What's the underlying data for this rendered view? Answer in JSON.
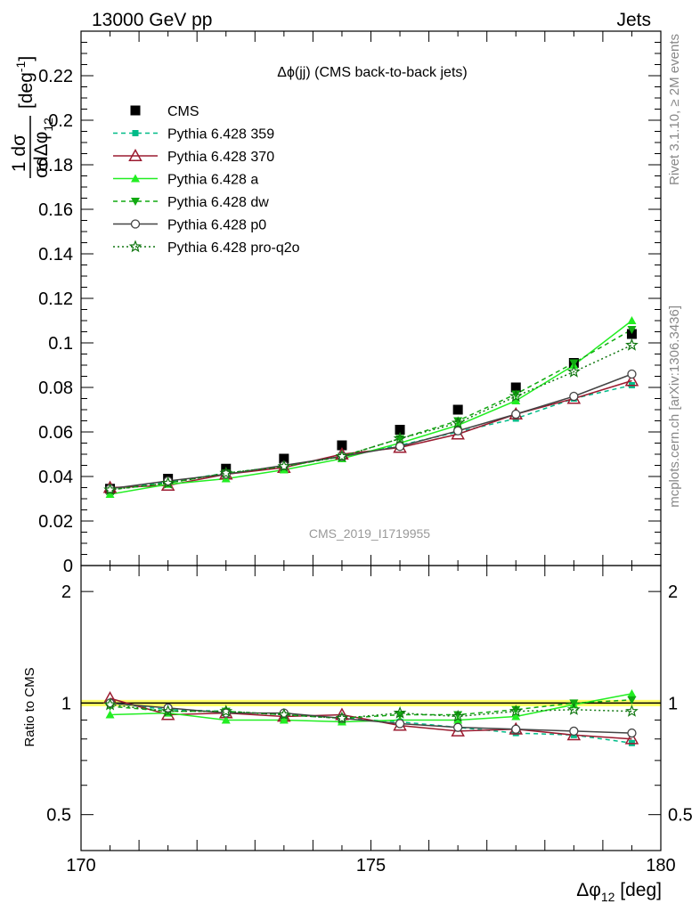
{
  "header": {
    "left": "13000 GeV pp",
    "right": "Jets"
  },
  "side_text": {
    "rivet": "Rivet 3.1.10, ≥ 2M events",
    "mcplots": "mcplots.cern.ch [arXiv:1306.3436]"
  },
  "watermark": "CMS_2019_I1719955",
  "chart_data": [
    {
      "type": "line",
      "panel": "main",
      "title": "Δϕ(jj) (CMS back-to-back jets)",
      "ylabel": "1/σ dσ/dΔϕ_12 [deg^-1]",
      "xlim": [
        170,
        180
      ],
      "ylim": [
        0,
        0.24
      ],
      "x": [
        170.5,
        171.5,
        172.5,
        173.5,
        174.5,
        175.5,
        176.5,
        177.5,
        178.5,
        179.5
      ],
      "yticks": [
        "0",
        "0.02",
        "0.04",
        "0.06",
        "0.08",
        "0.1",
        "0.12",
        "0.14",
        "0.16",
        "0.18",
        "0.2",
        "0.22"
      ],
      "ytick_values": [
        0,
        0.02,
        0.04,
        0.06,
        0.08,
        0.1,
        0.12,
        0.14,
        0.16,
        0.18,
        0.2,
        0.22
      ],
      "legend_position": "top-left",
      "series": [
        {
          "name": "CMS",
          "color": "#000000",
          "marker": "square",
          "line": "none",
          "values": [
            0.0345,
            0.039,
            0.0435,
            0.048,
            0.054,
            0.061,
            0.07,
            0.08,
            0.091,
            0.104
          ]
        },
        {
          "name": "Pythia 6.428 359",
          "color": "#00bb88",
          "marker": "small-square",
          "line": "dashed",
          "values": [
            0.0345,
            0.0375,
            0.0415,
            0.0445,
            0.049,
            0.054,
            0.06,
            0.066,
            0.075,
            0.081
          ]
        },
        {
          "name": "Pythia 6.428 370",
          "color": "#9b1b30",
          "marker": "open-triangle",
          "line": "solid",
          "values": [
            0.035,
            0.036,
            0.041,
            0.044,
            0.05,
            0.053,
            0.059,
            0.068,
            0.075,
            0.083
          ]
        },
        {
          "name": "Pythia 6.428 a",
          "color": "#22ee22",
          "marker": "triangle",
          "line": "solid",
          "values": [
            0.032,
            0.0365,
            0.039,
            0.043,
            0.048,
            0.055,
            0.063,
            0.074,
            0.09,
            0.11
          ]
        },
        {
          "name": "Pythia 6.428 dw",
          "color": "#11aa11",
          "marker": "triangle-down",
          "line": "dashed",
          "values": [
            0.034,
            0.037,
            0.0415,
            0.0445,
            0.049,
            0.057,
            0.065,
            0.077,
            0.091,
            0.106
          ]
        },
        {
          "name": "Pythia 6.428 p0",
          "color": "#444444",
          "marker": "open-circle",
          "line": "solid",
          "values": [
            0.0345,
            0.038,
            0.041,
            0.045,
            0.049,
            0.0535,
            0.0605,
            0.068,
            0.076,
            0.086
          ]
        },
        {
          "name": "Pythia 6.428 pro-q2o",
          "color": "#117711",
          "marker": "open-star",
          "line": "dotted",
          "values": [
            0.034,
            0.037,
            0.0415,
            0.0445,
            0.049,
            0.057,
            0.064,
            0.076,
            0.087,
            0.099
          ]
        }
      ]
    },
    {
      "type": "line",
      "panel": "ratio",
      "ylabel": "Ratio to CMS",
      "xlabel": "Δϕ_12 [deg]",
      "xlim": [
        170,
        180
      ],
      "ylim_log": [
        0.4,
        2.35
      ],
      "xticks": [
        "170",
        "175",
        "180"
      ],
      "xtick_values": [
        170,
        175,
        180
      ],
      "yticks": [
        "0.5",
        "1",
        "2"
      ],
      "ytick_values": [
        0.5,
        1,
        2
      ],
      "band": [
        0.98,
        1.02
      ],
      "band_color": "#ffff66",
      "x": [
        170.5,
        171.5,
        172.5,
        173.5,
        174.5,
        175.5,
        176.5,
        177.5,
        178.5,
        179.5
      ],
      "series": [
        {
          "name": "Pythia 6.428 359",
          "values": [
            1.0,
            0.96,
            0.95,
            0.93,
            0.91,
            0.89,
            0.86,
            0.83,
            0.82,
            0.78
          ]
        },
        {
          "name": "Pythia 6.428 370",
          "values": [
            1.03,
            0.93,
            0.94,
            0.92,
            0.93,
            0.87,
            0.84,
            0.85,
            0.82,
            0.8
          ]
        },
        {
          "name": "Pythia 6.428 a",
          "values": [
            0.93,
            0.94,
            0.9,
            0.9,
            0.89,
            0.9,
            0.9,
            0.92,
            0.99,
            1.06
          ]
        },
        {
          "name": "Pythia 6.428 dw",
          "values": [
            0.98,
            0.95,
            0.95,
            0.93,
            0.91,
            0.93,
            0.93,
            0.96,
            1.0,
            1.02
          ]
        },
        {
          "name": "Pythia 6.428 p0",
          "values": [
            1.0,
            0.97,
            0.94,
            0.94,
            0.91,
            0.88,
            0.86,
            0.85,
            0.84,
            0.83
          ]
        },
        {
          "name": "Pythia 6.428 pro-q2o",
          "values": [
            0.99,
            0.95,
            0.95,
            0.93,
            0.91,
            0.94,
            0.92,
            0.95,
            0.96,
            0.95
          ]
        }
      ]
    }
  ]
}
